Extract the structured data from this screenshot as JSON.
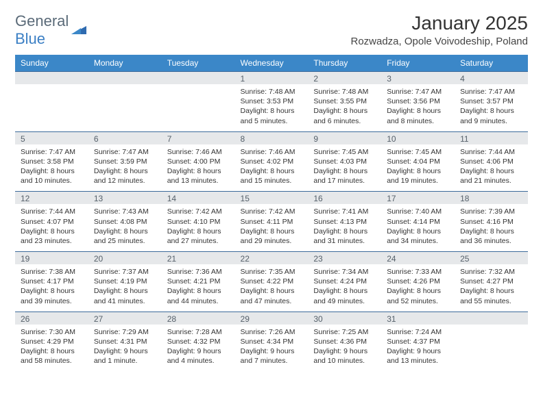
{
  "logo": {
    "word1": "General",
    "word2": "Blue"
  },
  "title": "January 2025",
  "location": "Rozwadza, Opole Voivodeship, Poland",
  "colors": {
    "header_bg": "#3b87c8",
    "header_text": "#ffffff",
    "daynum_bg": "#e6e8ea",
    "daynum_text": "#55606a",
    "row_border": "#3b6a9a",
    "body_text": "#333333",
    "logo_gray": "#5a6a78",
    "logo_blue": "#3b7fc4"
  },
  "typography": {
    "title_fontsize": 28,
    "location_fontsize": 15,
    "dayhead_fontsize": 12,
    "daynum_fontsize": 12,
    "cell_fontsize": 10.5
  },
  "day_headers": [
    "Sunday",
    "Monday",
    "Tuesday",
    "Wednesday",
    "Thursday",
    "Friday",
    "Saturday"
  ],
  "weeks": [
    [
      {
        "num": "",
        "lines": [
          "",
          "",
          "",
          ""
        ]
      },
      {
        "num": "",
        "lines": [
          "",
          "",
          "",
          ""
        ]
      },
      {
        "num": "",
        "lines": [
          "",
          "",
          "",
          ""
        ]
      },
      {
        "num": "1",
        "lines": [
          "Sunrise: 7:48 AM",
          "Sunset: 3:53 PM",
          "Daylight: 8 hours",
          "and 5 minutes."
        ]
      },
      {
        "num": "2",
        "lines": [
          "Sunrise: 7:48 AM",
          "Sunset: 3:55 PM",
          "Daylight: 8 hours",
          "and 6 minutes."
        ]
      },
      {
        "num": "3",
        "lines": [
          "Sunrise: 7:47 AM",
          "Sunset: 3:56 PM",
          "Daylight: 8 hours",
          "and 8 minutes."
        ]
      },
      {
        "num": "4",
        "lines": [
          "Sunrise: 7:47 AM",
          "Sunset: 3:57 PM",
          "Daylight: 8 hours",
          "and 9 minutes."
        ]
      }
    ],
    [
      {
        "num": "5",
        "lines": [
          "Sunrise: 7:47 AM",
          "Sunset: 3:58 PM",
          "Daylight: 8 hours",
          "and 10 minutes."
        ]
      },
      {
        "num": "6",
        "lines": [
          "Sunrise: 7:47 AM",
          "Sunset: 3:59 PM",
          "Daylight: 8 hours",
          "and 12 minutes."
        ]
      },
      {
        "num": "7",
        "lines": [
          "Sunrise: 7:46 AM",
          "Sunset: 4:00 PM",
          "Daylight: 8 hours",
          "and 13 minutes."
        ]
      },
      {
        "num": "8",
        "lines": [
          "Sunrise: 7:46 AM",
          "Sunset: 4:02 PM",
          "Daylight: 8 hours",
          "and 15 minutes."
        ]
      },
      {
        "num": "9",
        "lines": [
          "Sunrise: 7:45 AM",
          "Sunset: 4:03 PM",
          "Daylight: 8 hours",
          "and 17 minutes."
        ]
      },
      {
        "num": "10",
        "lines": [
          "Sunrise: 7:45 AM",
          "Sunset: 4:04 PM",
          "Daylight: 8 hours",
          "and 19 minutes."
        ]
      },
      {
        "num": "11",
        "lines": [
          "Sunrise: 7:44 AM",
          "Sunset: 4:06 PM",
          "Daylight: 8 hours",
          "and 21 minutes."
        ]
      }
    ],
    [
      {
        "num": "12",
        "lines": [
          "Sunrise: 7:44 AM",
          "Sunset: 4:07 PM",
          "Daylight: 8 hours",
          "and 23 minutes."
        ]
      },
      {
        "num": "13",
        "lines": [
          "Sunrise: 7:43 AM",
          "Sunset: 4:08 PM",
          "Daylight: 8 hours",
          "and 25 minutes."
        ]
      },
      {
        "num": "14",
        "lines": [
          "Sunrise: 7:42 AM",
          "Sunset: 4:10 PM",
          "Daylight: 8 hours",
          "and 27 minutes."
        ]
      },
      {
        "num": "15",
        "lines": [
          "Sunrise: 7:42 AM",
          "Sunset: 4:11 PM",
          "Daylight: 8 hours",
          "and 29 minutes."
        ]
      },
      {
        "num": "16",
        "lines": [
          "Sunrise: 7:41 AM",
          "Sunset: 4:13 PM",
          "Daylight: 8 hours",
          "and 31 minutes."
        ]
      },
      {
        "num": "17",
        "lines": [
          "Sunrise: 7:40 AM",
          "Sunset: 4:14 PM",
          "Daylight: 8 hours",
          "and 34 minutes."
        ]
      },
      {
        "num": "18",
        "lines": [
          "Sunrise: 7:39 AM",
          "Sunset: 4:16 PM",
          "Daylight: 8 hours",
          "and 36 minutes."
        ]
      }
    ],
    [
      {
        "num": "19",
        "lines": [
          "Sunrise: 7:38 AM",
          "Sunset: 4:17 PM",
          "Daylight: 8 hours",
          "and 39 minutes."
        ]
      },
      {
        "num": "20",
        "lines": [
          "Sunrise: 7:37 AM",
          "Sunset: 4:19 PM",
          "Daylight: 8 hours",
          "and 41 minutes."
        ]
      },
      {
        "num": "21",
        "lines": [
          "Sunrise: 7:36 AM",
          "Sunset: 4:21 PM",
          "Daylight: 8 hours",
          "and 44 minutes."
        ]
      },
      {
        "num": "22",
        "lines": [
          "Sunrise: 7:35 AM",
          "Sunset: 4:22 PM",
          "Daylight: 8 hours",
          "and 47 minutes."
        ]
      },
      {
        "num": "23",
        "lines": [
          "Sunrise: 7:34 AM",
          "Sunset: 4:24 PM",
          "Daylight: 8 hours",
          "and 49 minutes."
        ]
      },
      {
        "num": "24",
        "lines": [
          "Sunrise: 7:33 AM",
          "Sunset: 4:26 PM",
          "Daylight: 8 hours",
          "and 52 minutes."
        ]
      },
      {
        "num": "25",
        "lines": [
          "Sunrise: 7:32 AM",
          "Sunset: 4:27 PM",
          "Daylight: 8 hours",
          "and 55 minutes."
        ]
      }
    ],
    [
      {
        "num": "26",
        "lines": [
          "Sunrise: 7:30 AM",
          "Sunset: 4:29 PM",
          "Daylight: 8 hours",
          "and 58 minutes."
        ]
      },
      {
        "num": "27",
        "lines": [
          "Sunrise: 7:29 AM",
          "Sunset: 4:31 PM",
          "Daylight: 9 hours",
          "and 1 minute."
        ]
      },
      {
        "num": "28",
        "lines": [
          "Sunrise: 7:28 AM",
          "Sunset: 4:32 PM",
          "Daylight: 9 hours",
          "and 4 minutes."
        ]
      },
      {
        "num": "29",
        "lines": [
          "Sunrise: 7:26 AM",
          "Sunset: 4:34 PM",
          "Daylight: 9 hours",
          "and 7 minutes."
        ]
      },
      {
        "num": "30",
        "lines": [
          "Sunrise: 7:25 AM",
          "Sunset: 4:36 PM",
          "Daylight: 9 hours",
          "and 10 minutes."
        ]
      },
      {
        "num": "31",
        "lines": [
          "Sunrise: 7:24 AM",
          "Sunset: 4:37 PM",
          "Daylight: 9 hours",
          "and 13 minutes."
        ]
      },
      {
        "num": "",
        "lines": [
          "",
          "",
          "",
          ""
        ]
      }
    ]
  ]
}
